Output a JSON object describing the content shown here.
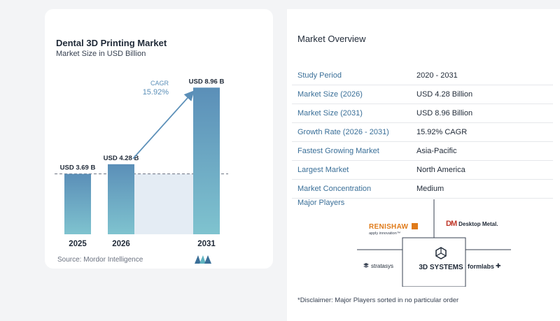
{
  "chart_data": {
    "type": "bar",
    "title": "Dental 3D Printing Market",
    "subtitle": "Market Size in USD Billion",
    "categories": [
      "2025",
      "2026",
      "2031"
    ],
    "values": [
      3.69,
      4.28,
      8.96
    ],
    "data_labels": [
      "USD 3.69 B",
      "USD 4.28 B",
      "USD 8.96 B"
    ],
    "cagr_label": "CAGR",
    "cagr_value": "15.92%",
    "ylim": [
      0,
      9.4
    ],
    "grid": false,
    "bar_color_top": "#5b8fb8",
    "bar_color_bottom": "#7fc3cf"
  },
  "source": "Source:  Mordor Intelligence",
  "overview": {
    "title": "Market Overview",
    "rows": [
      {
        "key": "Study Period",
        "value": "2020 - 2031"
      },
      {
        "key": "Market Size (2026)",
        "value": "USD 4.28 Billion"
      },
      {
        "key": "Market Size (2031)",
        "value": "USD 8.96 Billion"
      },
      {
        "key": "Growth Rate (2026 - 2031)",
        "value": "15.92% CAGR"
      },
      {
        "key": "Fastest Growing Market",
        "value": "Asia-Pacific"
      },
      {
        "key": "Largest Market",
        "value": "North America"
      },
      {
        "key": "Market Concentration",
        "value": "Medium"
      }
    ],
    "players_title": "Major Players",
    "players": {
      "renishaw": "RENISHAW",
      "renishaw_tag": "apply innovation™",
      "desktop_metal": "Desktop Metal.",
      "stratasys": "stratasys",
      "three_d_systems": "3D SYSTEMS",
      "formlabs": "formlabs"
    },
    "disclaimer": "*Disclaimer: Major Players sorted in no particular order"
  }
}
